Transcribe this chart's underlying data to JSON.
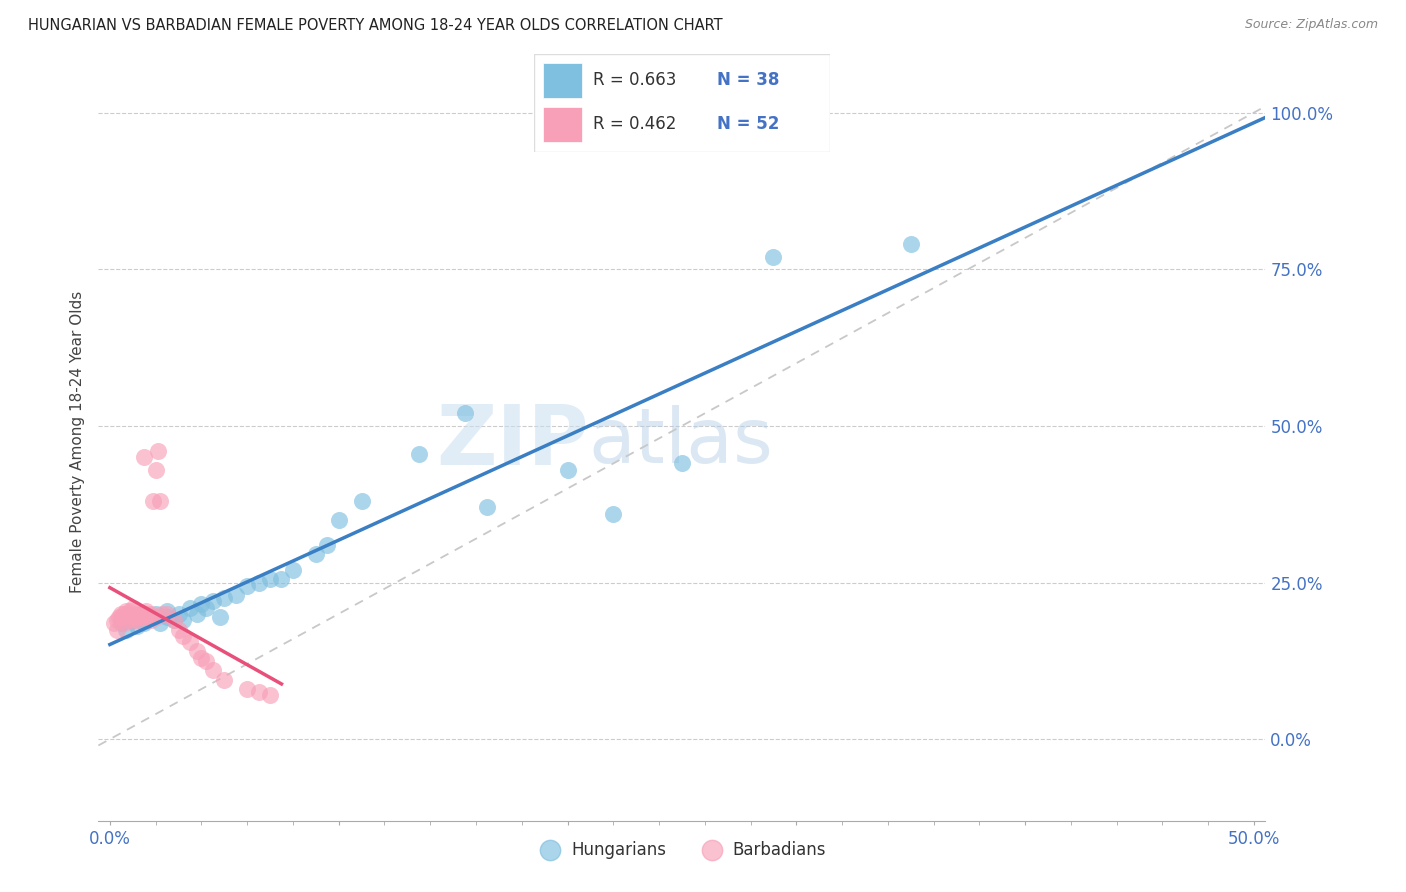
{
  "title": "HUNGARIAN VS BARBADIAN FEMALE POVERTY AMONG 18-24 YEAR OLDS CORRELATION CHART",
  "source": "Source: ZipAtlas.com",
  "ylabel": "Female Poverty Among 18-24 Year Olds",
  "xlim": [
    -0.005,
    0.505
  ],
  "ylim": [
    -0.13,
    1.08
  ],
  "xticks": [
    0.0,
    0.1,
    0.2,
    0.3,
    0.4,
    0.5
  ],
  "xtick_labels_show": [
    "0.0%",
    "",
    "",
    "",
    "",
    "50.0%"
  ],
  "yticks": [
    0.0,
    0.25,
    0.5,
    0.75,
    1.0
  ],
  "ytick_labels": [
    "0.0%",
    "25.0%",
    "50.0%",
    "75.0%",
    "100.0%"
  ],
  "blue_color": "#7fbfdf",
  "pink_color": "#f8a0b8",
  "blue_line_color": "#3a7ec4",
  "pink_line_color": "#e8507a",
  "dashed_line_color": "#c8c8c8",
  "watermark_zip": "ZIP",
  "watermark_atlas": "atlas",
  "background_color": "#ffffff",
  "legend_r1": "R = 0.663",
  "legend_n1": "N = 38",
  "legend_r2": "R = 0.462",
  "legend_n2": "N = 52",
  "hungarian_x": [
    0.005,
    0.007,
    0.01,
    0.012,
    0.015,
    0.018,
    0.02,
    0.022,
    0.025,
    0.025,
    0.028,
    0.03,
    0.032,
    0.035,
    0.038,
    0.04,
    0.042,
    0.045,
    0.048,
    0.05,
    0.055,
    0.06,
    0.065,
    0.07,
    0.075,
    0.08,
    0.09,
    0.095,
    0.1,
    0.11,
    0.135,
    0.155,
    0.165,
    0.2,
    0.22,
    0.25,
    0.29,
    0.35
  ],
  "hungarian_y": [
    0.185,
    0.175,
    0.19,
    0.18,
    0.185,
    0.195,
    0.2,
    0.185,
    0.195,
    0.205,
    0.19,
    0.2,
    0.19,
    0.21,
    0.2,
    0.215,
    0.21,
    0.22,
    0.195,
    0.225,
    0.23,
    0.245,
    0.25,
    0.255,
    0.255,
    0.27,
    0.295,
    0.31,
    0.35,
    0.38,
    0.455,
    0.52,
    0.37,
    0.43,
    0.36,
    0.44,
    0.77,
    0.79
  ],
  "barbadian_x": [
    0.002,
    0.003,
    0.003,
    0.004,
    0.005,
    0.005,
    0.006,
    0.006,
    0.007,
    0.007,
    0.008,
    0.008,
    0.009,
    0.009,
    0.01,
    0.01,
    0.01,
    0.011,
    0.011,
    0.012,
    0.012,
    0.013,
    0.013,
    0.014,
    0.014,
    0.015,
    0.015,
    0.015,
    0.016,
    0.016,
    0.017,
    0.018,
    0.018,
    0.019,
    0.02,
    0.02,
    0.021,
    0.022,
    0.023,
    0.025,
    0.028,
    0.03,
    0.032,
    0.035,
    0.038,
    0.04,
    0.042,
    0.045,
    0.05,
    0.06,
    0.065,
    0.07
  ],
  "barbadian_y": [
    0.185,
    0.19,
    0.175,
    0.195,
    0.195,
    0.2,
    0.185,
    0.2,
    0.195,
    0.205,
    0.19,
    0.2,
    0.195,
    0.205,
    0.19,
    0.195,
    0.21,
    0.2,
    0.195,
    0.195,
    0.19,
    0.195,
    0.2,
    0.195,
    0.2,
    0.195,
    0.2,
    0.45,
    0.205,
    0.2,
    0.195,
    0.19,
    0.2,
    0.38,
    0.43,
    0.195,
    0.46,
    0.38,
    0.2,
    0.2,
    0.19,
    0.175,
    0.165,
    0.155,
    0.14,
    0.13,
    0.125,
    0.11,
    0.095,
    0.08,
    0.075,
    0.07
  ]
}
